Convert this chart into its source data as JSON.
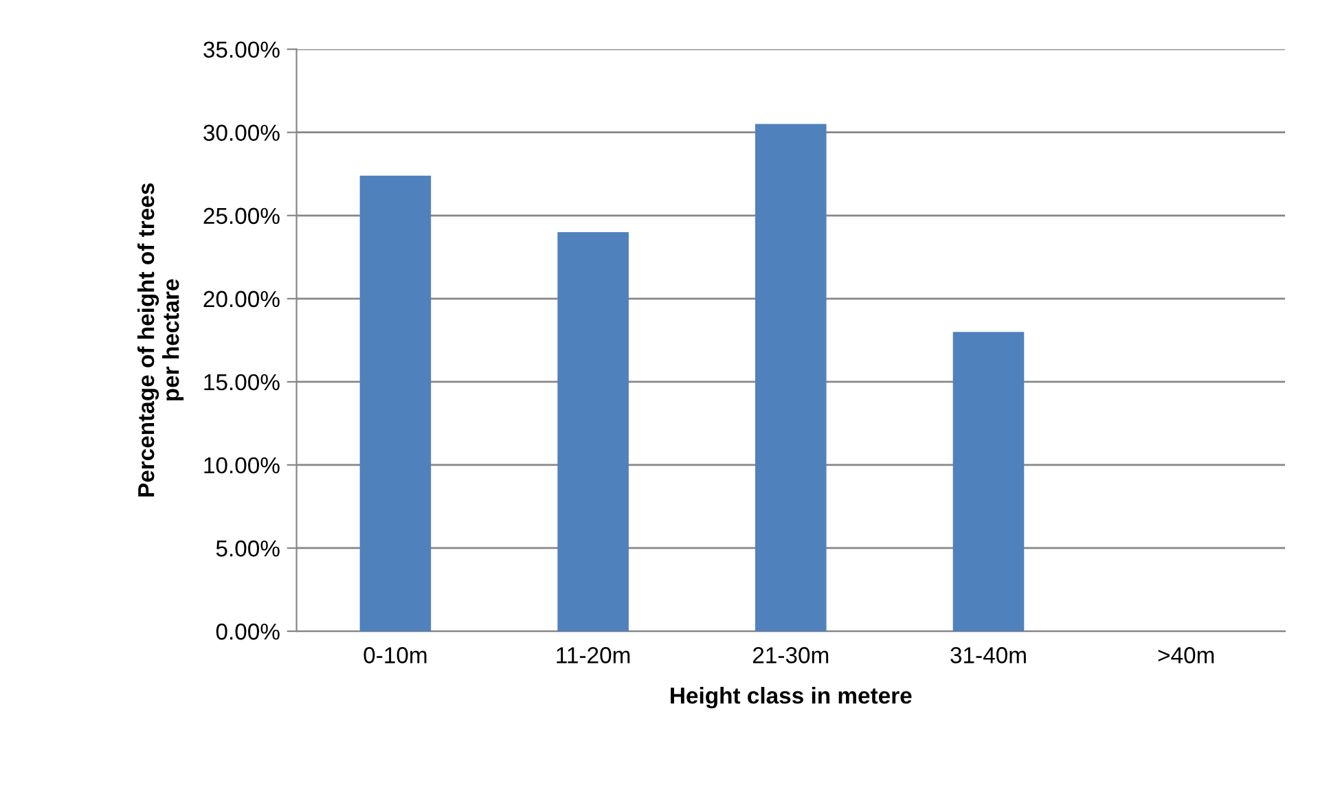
{
  "chart_data": {
    "type": "bar",
    "xlabel": "Height class in metere",
    "ylabel": "Percentage of height of trees\nper hectare",
    "categories": [
      "0-10m",
      "11-20m",
      "21-30m",
      "31-40m",
      ">40m"
    ],
    "values": [
      27.4,
      24.0,
      30.5,
      18.0,
      0
    ],
    "color": "#4f81bd",
    "ylim": [
      0,
      35
    ],
    "yticks": [
      {
        "value": 0,
        "label": "0.00%"
      },
      {
        "value": 5,
        "label": "5.00%"
      },
      {
        "value": 10,
        "label": "10.00%"
      },
      {
        "value": 15,
        "label": "15.00%"
      },
      {
        "value": 20,
        "label": "20.00%"
      },
      {
        "value": 25,
        "label": "25.00%"
      },
      {
        "value": 30,
        "label": "30.00%"
      },
      {
        "value": 35,
        "label": "35.00%"
      }
    ],
    "grid": "y"
  }
}
